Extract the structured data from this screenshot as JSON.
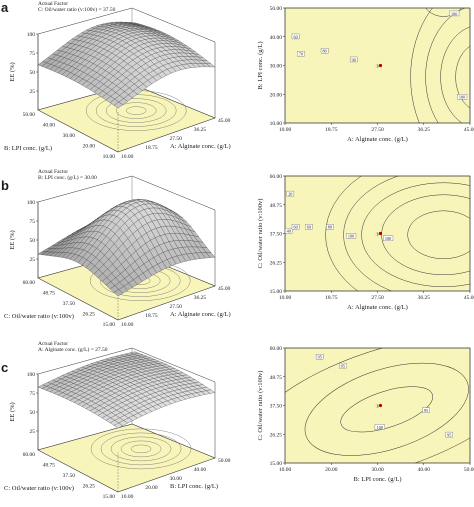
{
  "chart_data": [
    {
      "panel": "a",
      "type": "surface",
      "title_lines": [
        "Actual Factor",
        "C: Oil/water ratio (v:100v) = 37.50"
      ],
      "zlabel": "EE (%)",
      "z_ticks": [
        "25",
        "50",
        "75",
        "100"
      ],
      "x_axis": {
        "label": "A: Alginate conc. (g/L)",
        "ticks": [
          "10.00",
          "18.75",
          "27.50",
          "36.25",
          "45.00"
        ]
      },
      "y_axis": {
        "label": "B: LPI conc. (g/L)",
        "ticks": [
          "10.00",
          "20.00",
          "30.00",
          "40.00",
          "50.00"
        ]
      }
    },
    {
      "panel": "a",
      "type": "contour",
      "x_axis": {
        "label": "A: Alginate conc. (g/L)",
        "ticks": [
          "10.00",
          "18.75",
          "27.50",
          "36.25",
          "45.00"
        ],
        "range": [
          10,
          45
        ]
      },
      "y_axis": {
        "label": "B: LPI conc. (g/L)",
        "ticks": [
          "10.00",
          "20.00",
          "30.00",
          "40.00",
          "50.00"
        ],
        "range": [
          10,
          50
        ]
      },
      "contour_labels": [
        {
          "text": "60",
          "x": 12.0,
          "y": 40.0
        },
        {
          "text": "70",
          "x": 13.0,
          "y": 34.0
        },
        {
          "text": "80",
          "x": 17.5,
          "y": 35.0
        },
        {
          "text": "90",
          "x": 23.0,
          "y": 32.0
        },
        {
          "text": "100",
          "x": 42.0,
          "y": 48.0
        },
        {
          "text": "100",
          "x": 43.5,
          "y": 19.0
        }
      ],
      "design_point": {
        "label": "3",
        "x": 27.5,
        "y": 30.0
      }
    },
    {
      "panel": "b",
      "type": "surface",
      "title_lines": [
        "Actual Factor",
        "B: LPI conc. (g/L) = 30.00"
      ],
      "zlabel": "EE (%)",
      "z_ticks": [
        "25",
        "50",
        "75",
        "100"
      ],
      "x_axis": {
        "label": "A: Alginate conc. (g/L)",
        "ticks": [
          "10.00",
          "18.75",
          "27.50",
          "36.25",
          "45.00"
        ]
      },
      "y_axis": {
        "label": "C: Oil/water ratio (v:100v)",
        "ticks": [
          "15.00",
          "26.25",
          "37.50",
          "48.75",
          "60.00"
        ]
      }
    },
    {
      "panel": "b",
      "type": "contour",
      "x_axis": {
        "label": "A: Alginate conc. (g/L)",
        "ticks": [
          "10.00",
          "18.75",
          "27.50",
          "36.25",
          "45.00"
        ],
        "range": [
          10,
          45
        ]
      },
      "y_axis": {
        "label": "C: Oil/water ratio (v:100v)",
        "ticks": [
          "15.00",
          "26.25",
          "37.50",
          "48.75",
          "60.00"
        ],
        "range": [
          15,
          60
        ]
      },
      "contour_labels": [
        {
          "text": "20",
          "x": 11.0,
          "y": 53.0
        },
        {
          "text": "40",
          "x": 10.7,
          "y": 38.5
        },
        {
          "text": "60",
          "x": 12.0,
          "y": 40.0
        },
        {
          "text": "60",
          "x": 14.5,
          "y": 40.0
        },
        {
          "text": "80",
          "x": 18.5,
          "y": 40.0
        },
        {
          "text": "100",
          "x": 22.5,
          "y": 36.5
        },
        {
          "text": "100",
          "x": 29.5,
          "y": 35.5
        }
      ],
      "design_point": {
        "label": "3",
        "x": 27.5,
        "y": 37.5
      }
    },
    {
      "panel": "c",
      "type": "surface",
      "title_lines": [
        "Actual Factor",
        "A: Alginate conc. (g/L) = 27.50"
      ],
      "zlabel": "EE (%)",
      "z_ticks": [
        "25",
        "50",
        "75",
        "100"
      ],
      "x_axis": {
        "label": "B: LPI conc. (g/L)",
        "ticks": [
          "10.00",
          "20.00",
          "30.00",
          "40.00",
          "50.00"
        ]
      },
      "y_axis": {
        "label": "C: Oil/water ratio (v:100v)",
        "ticks": [
          "15.00",
          "26.25",
          "37.50",
          "48.75",
          "60.00"
        ]
      }
    },
    {
      "panel": "c",
      "type": "contour",
      "x_axis": {
        "label": "B: LPI conc. (g/L)",
        "ticks": [
          "10.00",
          "20.00",
          "30.00",
          "40.00",
          "50.00"
        ],
        "range": [
          10,
          50
        ]
      },
      "y_axis": {
        "label": "C: Oil/water ratio (v:100v)",
        "ticks": [
          "15.00",
          "26.25",
          "37.50",
          "48.75",
          "60.00"
        ],
        "range": [
          15,
          60
        ]
      },
      "contour_labels": [
        {
          "text": "95",
          "x": 17.5,
          "y": 56.5
        },
        {
          "text": "95",
          "x": 22.5,
          "y": 53.0
        },
        {
          "text": "95",
          "x": 40.5,
          "y": 35.5
        },
        {
          "text": "95",
          "x": 45.5,
          "y": 26.0
        },
        {
          "text": "100",
          "x": 30.5,
          "y": 29.0
        }
      ],
      "design_point": {
        "label": "3",
        "x": 30.0,
        "y": 37.5
      }
    }
  ],
  "panel_labels": [
    "a",
    "b",
    "c"
  ]
}
